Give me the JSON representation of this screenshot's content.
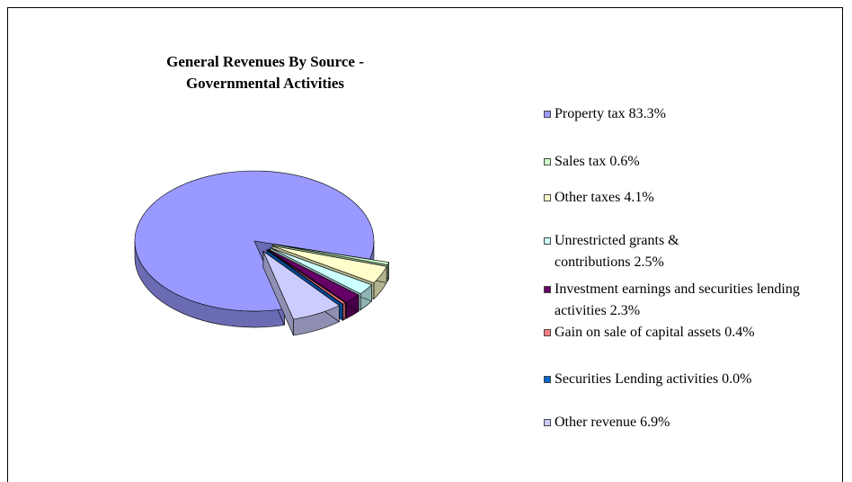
{
  "chart_data": {
    "type": "pie",
    "title": "General Revenues By Source - Governmental Activities",
    "categories": [
      "Property tax",
      "Sales tax",
      "Other taxes",
      "Unrestricted grants & contributions",
      "Investment earnings and securities lending activities",
      "Gain on sale of capital assets",
      "Securities Lending activities",
      "Other revenue"
    ],
    "values": [
      83.3,
      0.6,
      4.1,
      2.5,
      2.3,
      0.4,
      0.0,
      6.9
    ],
    "value_labels": [
      "83.3%",
      "0.6%",
      "4.1%",
      "2.5%",
      "2.3%",
      "0.4%",
      "0.0%",
      "6.9%"
    ],
    "colors": [
      "#9999ff",
      "#ccffcc",
      "#ffffcc",
      "#ccffff",
      "#660066",
      "#ff8080",
      "#0066cc",
      "#ccccff"
    ],
    "legend": "right"
  }
}
